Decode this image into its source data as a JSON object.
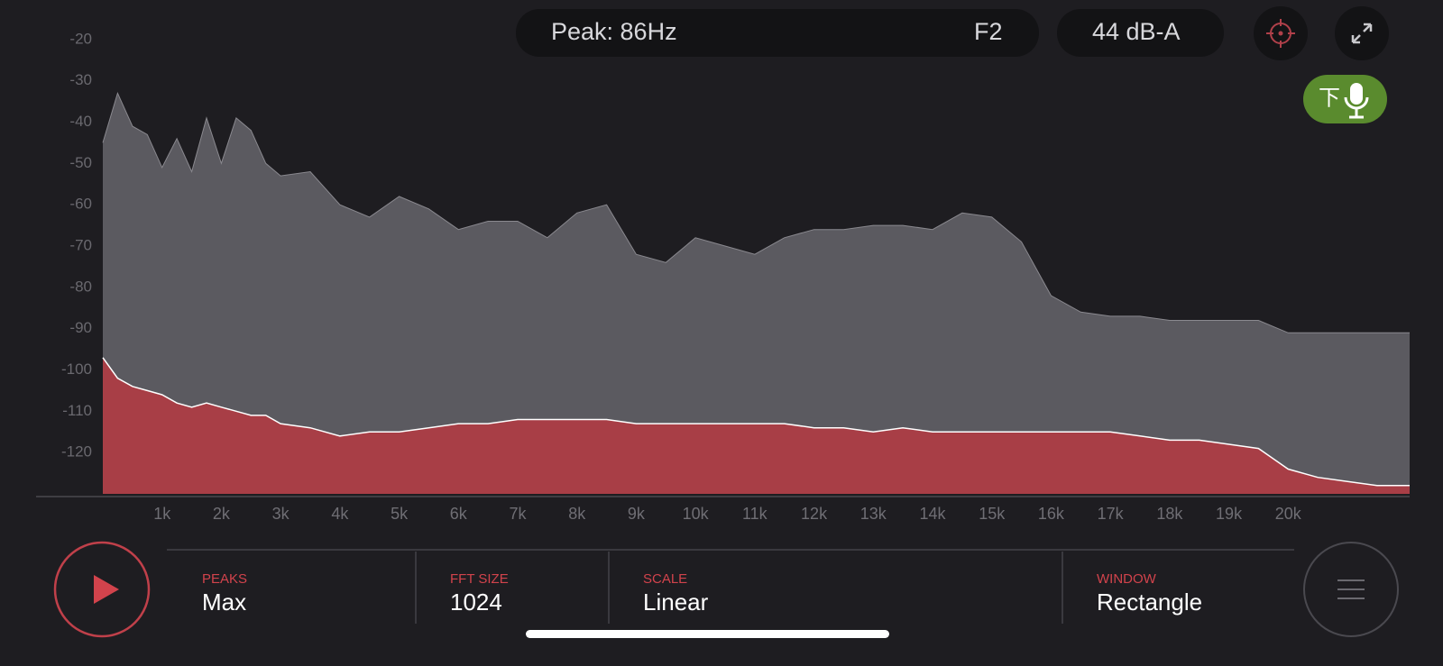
{
  "chart_data": {
    "type": "area",
    "x": [
      0,
      250,
      500,
      750,
      1000,
      1250,
      1500,
      1750,
      2000,
      2250,
      2500,
      2750,
      3000,
      3500,
      4000,
      4500,
      5000,
      5500,
      6000,
      6500,
      7000,
      7500,
      8000,
      8500,
      9000,
      9500,
      10000,
      10500,
      11000,
      11500,
      12000,
      12500,
      13000,
      13500,
      14000,
      14500,
      15000,
      15500,
      16000,
      16500,
      17000,
      17500,
      18000,
      18500,
      19000,
      19500,
      20000,
      20500,
      21000,
      21500,
      22050
    ],
    "series": [
      {
        "color": "#5b5a60",
        "values": [
          -45,
          -33,
          -41,
          -43,
          -51,
          -44,
          -52,
          -39,
          -50,
          -39,
          -42,
          -50,
          -53,
          -52,
          -60,
          -63,
          -58,
          -61,
          -66,
          -64,
          -64,
          -68,
          -62,
          -60,
          -72,
          -74,
          -68,
          -70,
          -72,
          -68,
          -66,
          -66,
          -65,
          -65,
          -66,
          -62,
          -63,
          -69,
          -82,
          -86,
          -87,
          -87,
          -88,
          -88,
          -88,
          -88,
          -91,
          -91,
          -91,
          -91,
          -91
        ]
      },
      {
        "color": "#a83e46",
        "values": [
          -97,
          -102,
          -104,
          -105,
          -106,
          -108,
          -109,
          -108,
          -109,
          -110,
          -111,
          -111,
          -113,
          -114,
          -116,
          -115,
          -115,
          -114,
          -113,
          -113,
          -112,
          -112,
          -112,
          -112,
          -113,
          -113,
          -113,
          -113,
          -113,
          -113,
          -114,
          -114,
          -115,
          -114,
          -115,
          -115,
          -115,
          -115,
          -115,
          -115,
          -115,
          -116,
          -117,
          -117,
          -118,
          -119,
          -124,
          -126,
          -127,
          -128,
          -128
        ]
      }
    ],
    "xlim": [
      0,
      22050
    ],
    "xticks": [
      {
        "value": 1000,
        "label": "1k"
      },
      {
        "value": 2000,
        "label": "2k"
      },
      {
        "value": 3000,
        "label": "3k"
      },
      {
        "value": 4000,
        "label": "4k"
      },
      {
        "value": 5000,
        "label": "5k"
      },
      {
        "value": 6000,
        "label": "6k"
      },
      {
        "value": 7000,
        "label": "7k"
      },
      {
        "value": 8000,
        "label": "8k"
      },
      {
        "value": 9000,
        "label": "9k"
      },
      {
        "value": 10000,
        "label": "10k"
      },
      {
        "value": 11000,
        "label": "11k"
      },
      {
        "value": 12000,
        "label": "12k"
      },
      {
        "value": 13000,
        "label": "13k"
      },
      {
        "value": 14000,
        "label": "14k"
      },
      {
        "value": 15000,
        "label": "15k"
      },
      {
        "value": 16000,
        "label": "16k"
      },
      {
        "value": 17000,
        "label": "17k"
      },
      {
        "value": 18000,
        "label": "18k"
      },
      {
        "value": 19000,
        "label": "19k"
      },
      {
        "value": 20000,
        "label": "20k"
      }
    ],
    "ylim": [
      -130,
      -10
    ],
    "yticks": [
      -20,
      -30,
      -40,
      -50,
      -60,
      -70,
      -80,
      -90,
      -100,
      -110,
      -120
    ],
    "grid": false
  },
  "header": {
    "peak": "Peak: 86Hz",
    "note": "F2",
    "level": "44 dB-A",
    "mic": "下"
  },
  "controls": [
    {
      "label": "PEAKS",
      "value": "Max"
    },
    {
      "label": "FFT SIZE",
      "value": "1024"
    },
    {
      "label": "SCALE",
      "value": "Linear"
    },
    {
      "label": "WINDOW",
      "value": "Rectangle"
    }
  ]
}
